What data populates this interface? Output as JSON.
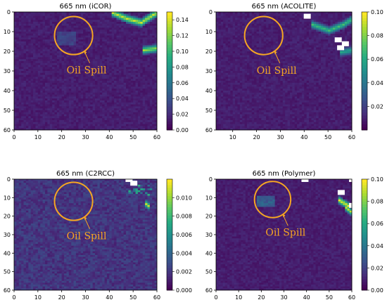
{
  "chart_data": [
    {
      "type": "heatmap",
      "title": "665 nm (iCOR)",
      "xticks": [
        0,
        10,
        20,
        30,
        40,
        50,
        60
      ],
      "yticks": [
        0,
        10,
        20,
        30,
        40,
        50,
        60
      ],
      "xlim": [
        0,
        60
      ],
      "ylim": [
        0,
        60
      ],
      "colorbar": {
        "min": 0.0,
        "max": 0.15,
        "ticks": [
          "0.00",
          "0.02",
          "0.04",
          "0.06",
          "0.08",
          "0.10",
          "0.12",
          "0.14"
        ]
      },
      "colormap": "viridis",
      "background_level": 0.012,
      "features": [
        {
          "kind": "bright-band",
          "x": [
            41,
            47,
            53,
            58,
            60
          ],
          "y": [
            0,
            3,
            5,
            1,
            0
          ],
          "level": 0.14
        },
        {
          "kind": "bright-band",
          "x": [
            54,
            60
          ],
          "y": [
            19,
            18
          ],
          "level": 0.13
        },
        {
          "kind": "dark-patch",
          "x": [
            18,
            25
          ],
          "y": [
            10,
            16
          ],
          "level": 0.03
        }
      ],
      "nodata": [],
      "annotation": {
        "text": "Oil Spill",
        "circle_center": [
          25,
          12
        ],
        "circle_radius": 8
      }
    },
    {
      "type": "heatmap",
      "title": "665 nm (ACOLITE)",
      "xticks": [
        10,
        20,
        30,
        40,
        50,
        60
      ],
      "yticks": [
        0,
        10,
        20,
        30,
        40,
        50,
        60
      ],
      "xlim": [
        3,
        60
      ],
      "ylim": [
        0,
        60
      ],
      "colorbar": {
        "min": 0.0,
        "max": 0.1,
        "ticks": [
          "0.02",
          "0.04",
          "0.06",
          "0.08",
          "0.10"
        ]
      },
      "colormap": "viridis",
      "background_level": 0.008,
      "features": [
        {
          "kind": "bright-band",
          "x": [
            43,
            50,
            56,
            60
          ],
          "y": [
            6,
            9,
            6,
            3
          ],
          "level": 0.07
        },
        {
          "kind": "bright-band",
          "x": [
            55,
            60
          ],
          "y": [
            20,
            19
          ],
          "level": 0.06
        }
      ],
      "nodata": [
        [
          41,
          2
        ],
        [
          54,
          14
        ],
        [
          55,
          18
        ],
        [
          57,
          16
        ]
      ],
      "annotation": {
        "text": "Oil Spill",
        "circle_center": [
          23,
          12
        ],
        "circle_radius": 8
      }
    },
    {
      "type": "heatmap",
      "title": "665 nm (C2RCC)",
      "xticks": [
        0,
        10,
        20,
        30,
        40,
        50,
        60
      ],
      "yticks": [
        0,
        10,
        20,
        30,
        40,
        50,
        60
      ],
      "xlim": [
        0,
        60
      ],
      "ylim": [
        0,
        60
      ],
      "colorbar": {
        "min": 0.0,
        "max": 0.012,
        "ticks": [
          "0.000",
          "0.002",
          "0.004",
          "0.006",
          "0.008",
          "0.010"
        ]
      },
      "colormap": "viridis",
      "background_level": 0.0018,
      "features": [
        {
          "kind": "speckle",
          "x": [
            48,
            57
          ],
          "y": [
            3,
            8
          ],
          "level": 0.008
        },
        {
          "kind": "bright-band",
          "x": [
            55,
            56
          ],
          "y": [
            13,
            14
          ],
          "level": 0.011
        }
      ],
      "nodata": [
        [
          48,
          0
        ],
        [
          50,
          2
        ]
      ],
      "annotation": {
        "text": "Oil Spill",
        "circle_center": [
          25,
          12
        ],
        "circle_radius": 8
      }
    },
    {
      "type": "heatmap",
      "title": "665 nm (Polymer)",
      "xticks": [
        0,
        10,
        20,
        30,
        40,
        50,
        60
      ],
      "yticks": [
        0,
        10,
        20,
        30,
        40,
        50,
        60
      ],
      "xlim": [
        0,
        60
      ],
      "ylim": [
        0,
        60
      ],
      "colorbar": {
        "min": 0.0,
        "max": 0.1,
        "ticks": [
          "0.00",
          "0.02",
          "0.04",
          "0.06",
          "0.08",
          "0.10"
        ]
      },
      "colormap": "viridis",
      "background_level": 0.008,
      "features": [
        {
          "kind": "bright-band",
          "x": [
            54,
            58
          ],
          "y": [
            11,
            14
          ],
          "level": 0.1
        },
        {
          "kind": "bright-band",
          "x": [
            57,
            60
          ],
          "y": [
            15,
            18
          ],
          "level": 0.09
        },
        {
          "kind": "dark-patch",
          "x": [
            18,
            25
          ],
          "y": [
            9,
            14
          ],
          "level": 0.03
        }
      ],
      "nodata": [
        [
          39,
          0
        ],
        [
          60,
          0
        ],
        [
          60,
          14
        ],
        [
          55,
          7
        ]
      ],
      "annotation": {
        "text": "Oil Spill",
        "circle_center": [
          25,
          11
        ],
        "circle_radius": 8
      }
    }
  ]
}
